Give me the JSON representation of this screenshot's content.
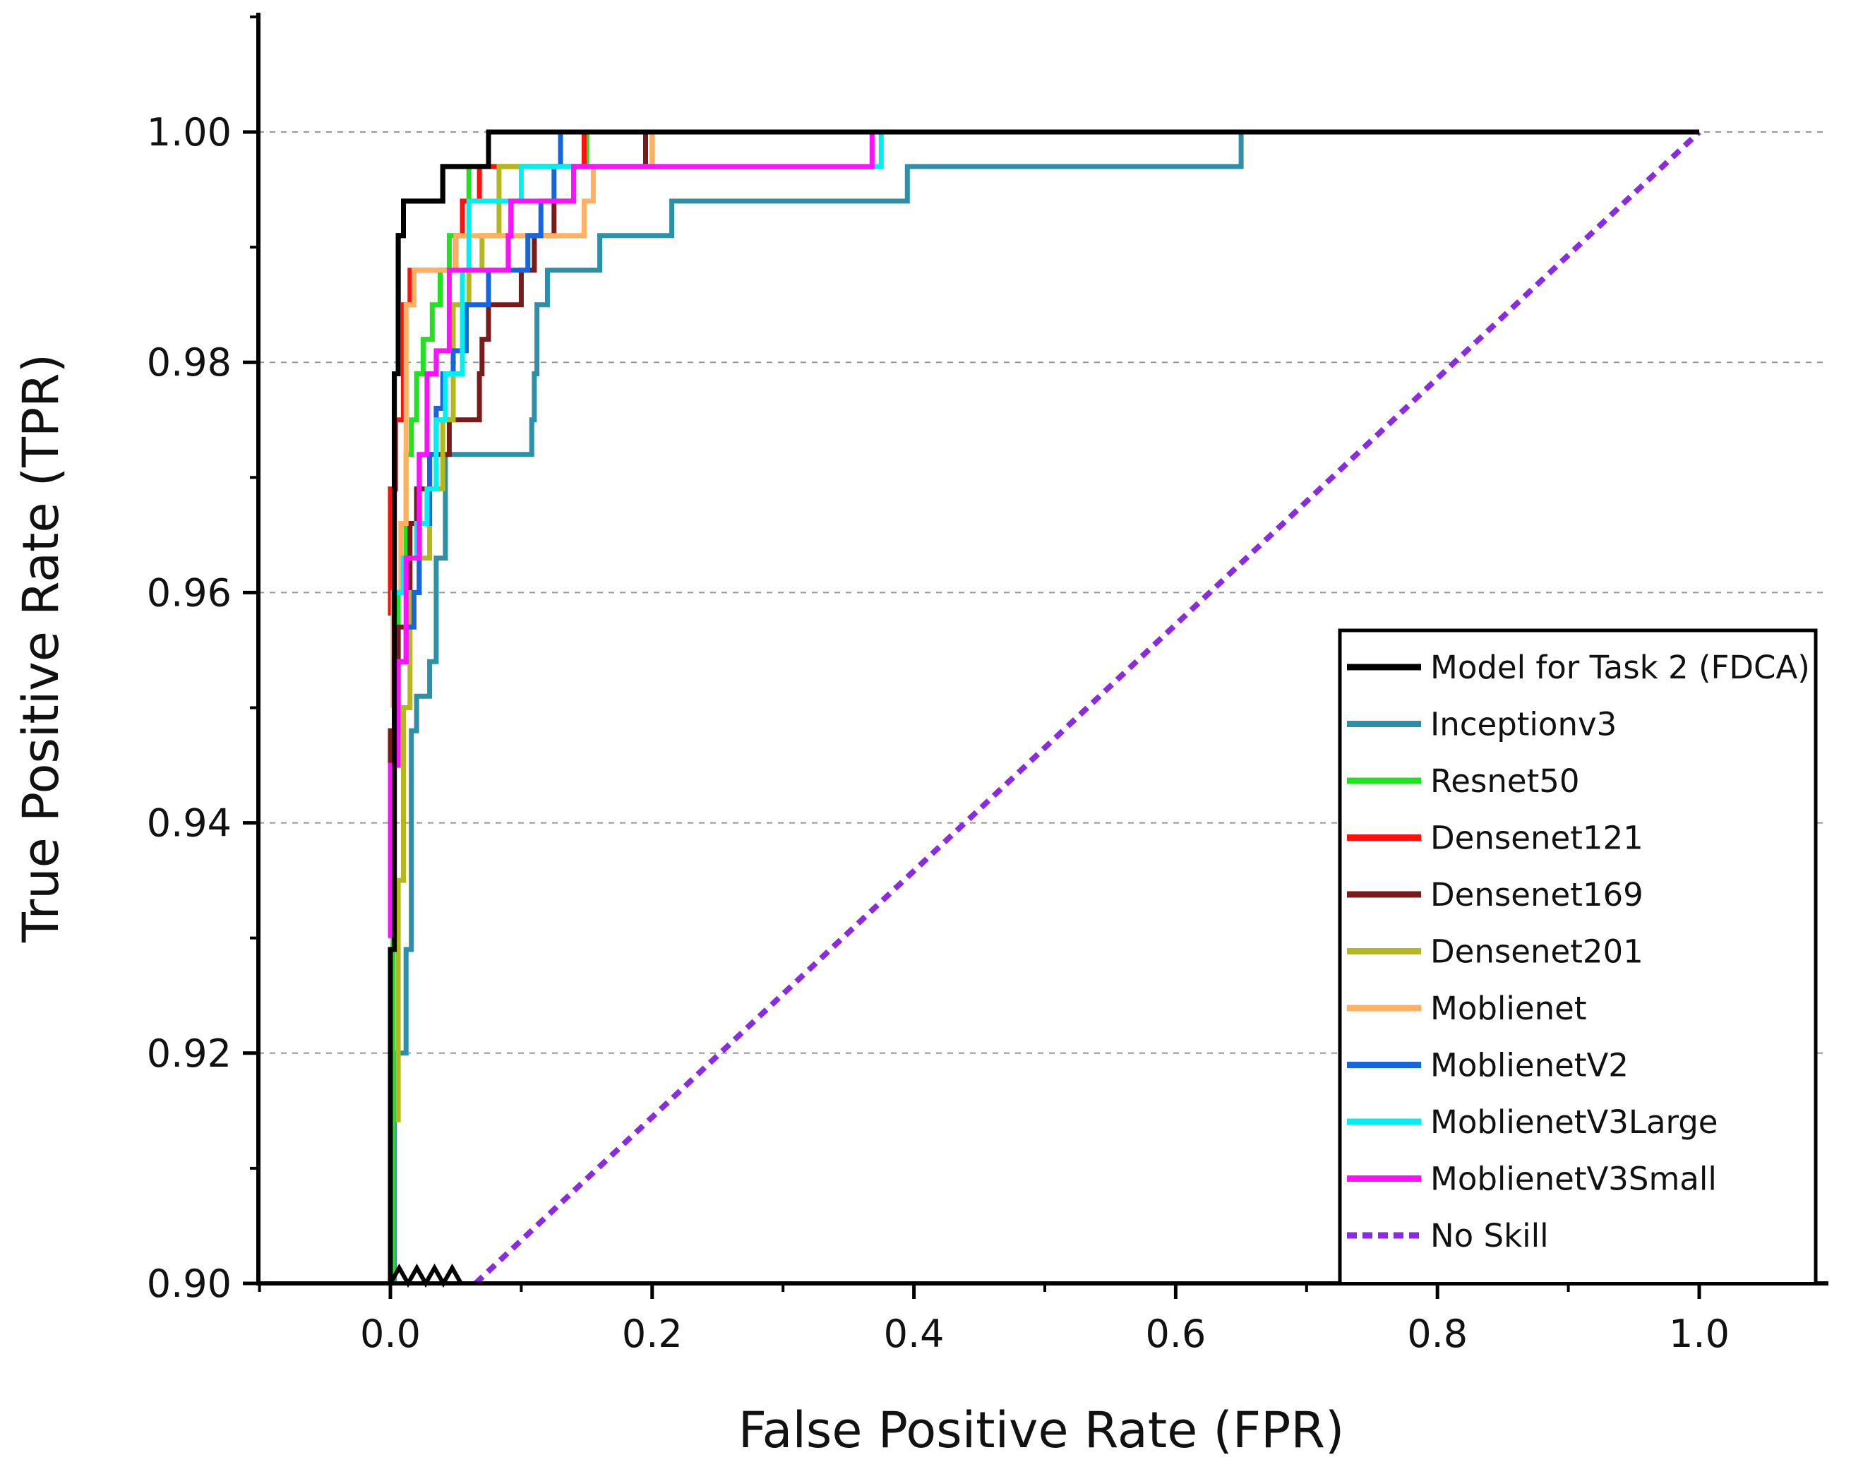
{
  "chart_data": {
    "type": "line",
    "title": "",
    "xlabel": "False Positive Rate (FPR)",
    "ylabel": "True Positive Rate (TPR)",
    "xlim": [
      -0.1,
      1.1
    ],
    "ylim": [
      0.9,
      1.01
    ],
    "x_ticks": [
      0.0,
      0.2,
      0.4,
      0.6,
      0.8,
      1.0
    ],
    "x_tick_labels": [
      "0.0",
      "0.2",
      "0.4",
      "0.6",
      "0.8",
      "1.0"
    ],
    "y_ticks": [
      0.9,
      0.92,
      0.94,
      0.96,
      0.98,
      1.0
    ],
    "y_tick_labels": [
      "0.90",
      "0.92",
      "0.94",
      "0.96",
      "0.98",
      "1.00"
    ],
    "y_axis_break": true,
    "grid": "horizontal dashed at y ticks",
    "legend_position": "lower-right",
    "series": [
      {
        "name": "Model for Task 2 (FDCA)",
        "color": "#000000",
        "dashed": false,
        "points": [
          [
            0,
            0.9
          ],
          [
            0,
            0.929
          ],
          [
            0.003,
            0.929
          ],
          [
            0.003,
            0.979
          ],
          [
            0.006,
            0.979
          ],
          [
            0.006,
            0.991
          ],
          [
            0.01,
            0.991
          ],
          [
            0.01,
            0.994
          ],
          [
            0.04,
            0.994
          ],
          [
            0.04,
            0.997
          ],
          [
            0.075,
            0.997
          ],
          [
            0.075,
            1.0
          ],
          [
            1.0,
            1.0
          ]
        ]
      },
      {
        "name": "Inceptionv3",
        "color": "#2e8fa8",
        "dashed": false,
        "points": [
          [
            0.003,
            0.9
          ],
          [
            0.003,
            0.92
          ],
          [
            0.012,
            0.92
          ],
          [
            0.012,
            0.929
          ],
          [
            0.016,
            0.929
          ],
          [
            0.016,
            0.948
          ],
          [
            0.02,
            0.948
          ],
          [
            0.02,
            0.951
          ],
          [
            0.03,
            0.951
          ],
          [
            0.03,
            0.954
          ],
          [
            0.035,
            0.954
          ],
          [
            0.035,
            0.963
          ],
          [
            0.042,
            0.963
          ],
          [
            0.042,
            0.972
          ],
          [
            0.108,
            0.972
          ],
          [
            0.108,
            0.975
          ],
          [
            0.11,
            0.975
          ],
          [
            0.11,
            0.979
          ],
          [
            0.112,
            0.979
          ],
          [
            0.112,
            0.985
          ],
          [
            0.12,
            0.985
          ],
          [
            0.12,
            0.988
          ],
          [
            0.16,
            0.988
          ],
          [
            0.16,
            0.991
          ],
          [
            0.215,
            0.991
          ],
          [
            0.215,
            0.994
          ],
          [
            0.395,
            0.994
          ],
          [
            0.395,
            0.997
          ],
          [
            0.65,
            0.997
          ],
          [
            0.65,
            1.0
          ],
          [
            1.0,
            1.0
          ]
        ]
      },
      {
        "name": "Resnet50",
        "color": "#22e022",
        "dashed": false,
        "points": [
          [
            0.002,
            0.9
          ],
          [
            0.002,
            0.948
          ],
          [
            0.006,
            0.948
          ],
          [
            0.006,
            0.96
          ],
          [
            0.012,
            0.96
          ],
          [
            0.012,
            0.972
          ],
          [
            0.016,
            0.972
          ],
          [
            0.016,
            0.975
          ],
          [
            0.02,
            0.975
          ],
          [
            0.02,
            0.979
          ],
          [
            0.025,
            0.979
          ],
          [
            0.025,
            0.982
          ],
          [
            0.032,
            0.982
          ],
          [
            0.032,
            0.985
          ],
          [
            0.038,
            0.985
          ],
          [
            0.038,
            0.988
          ],
          [
            0.045,
            0.988
          ],
          [
            0.045,
            0.991
          ],
          [
            0.06,
            0.991
          ],
          [
            0.06,
            0.997
          ],
          [
            0.15,
            0.997
          ],
          [
            0.15,
            1.0
          ],
          [
            1.0,
            1.0
          ]
        ]
      },
      {
        "name": "Densenet121",
        "color": "#ff1010",
        "dashed": false,
        "points": [
          [
            0,
            0.958
          ],
          [
            0,
            0.969
          ],
          [
            0.004,
            0.969
          ],
          [
            0.004,
            0.975
          ],
          [
            0.01,
            0.975
          ],
          [
            0.01,
            0.985
          ],
          [
            0.015,
            0.985
          ],
          [
            0.015,
            0.988
          ],
          [
            0.05,
            0.988
          ],
          [
            0.05,
            0.991
          ],
          [
            0.055,
            0.991
          ],
          [
            0.055,
            0.994
          ],
          [
            0.068,
            0.994
          ],
          [
            0.068,
            0.997
          ],
          [
            0.148,
            0.997
          ],
          [
            0.148,
            1.0
          ]
        ]
      },
      {
        "name": "Densenet169",
        "color": "#7a1a1a",
        "dashed": false,
        "points": [
          [
            0,
            0.945
          ],
          [
            0,
            0.948
          ],
          [
            0.006,
            0.948
          ],
          [
            0.006,
            0.957
          ],
          [
            0.015,
            0.957
          ],
          [
            0.015,
            0.966
          ],
          [
            0.02,
            0.966
          ],
          [
            0.02,
            0.969
          ],
          [
            0.03,
            0.969
          ],
          [
            0.03,
            0.972
          ],
          [
            0.045,
            0.972
          ],
          [
            0.045,
            0.975
          ],
          [
            0.068,
            0.975
          ],
          [
            0.068,
            0.979
          ],
          [
            0.07,
            0.979
          ],
          [
            0.07,
            0.982
          ],
          [
            0.075,
            0.982
          ],
          [
            0.075,
            0.985
          ],
          [
            0.1,
            0.985
          ],
          [
            0.1,
            0.988
          ],
          [
            0.11,
            0.988
          ],
          [
            0.11,
            0.991
          ],
          [
            0.125,
            0.991
          ],
          [
            0.125,
            0.994
          ],
          [
            0.14,
            0.994
          ],
          [
            0.14,
            0.997
          ],
          [
            0.195,
            0.997
          ],
          [
            0.195,
            1.0
          ]
        ]
      },
      {
        "name": "Densenet201",
        "color": "#b5b81a",
        "dashed": false,
        "points": [
          [
            0.006,
            0.914
          ],
          [
            0.006,
            0.935
          ],
          [
            0.01,
            0.935
          ],
          [
            0.01,
            0.95
          ],
          [
            0.015,
            0.95
          ],
          [
            0.015,
            0.96
          ],
          [
            0.022,
            0.96
          ],
          [
            0.022,
            0.963
          ],
          [
            0.03,
            0.963
          ],
          [
            0.03,
            0.969
          ],
          [
            0.04,
            0.969
          ],
          [
            0.04,
            0.975
          ],
          [
            0.048,
            0.975
          ],
          [
            0.048,
            0.985
          ],
          [
            0.06,
            0.985
          ],
          [
            0.06,
            0.988
          ],
          [
            0.07,
            0.988
          ],
          [
            0.07,
            0.991
          ],
          [
            0.083,
            0.991
          ],
          [
            0.083,
            0.997
          ],
          [
            0.2,
            0.997
          ],
          [
            0.2,
            1.0
          ]
        ]
      },
      {
        "name": "Moblienet",
        "color": "#ffb060",
        "dashed": false,
        "points": [
          [
            0.002,
            0.95
          ],
          [
            0.002,
            0.96
          ],
          [
            0.008,
            0.96
          ],
          [
            0.008,
            0.966
          ],
          [
            0.012,
            0.966
          ],
          [
            0.012,
            0.985
          ],
          [
            0.018,
            0.985
          ],
          [
            0.018,
            0.988
          ],
          [
            0.05,
            0.988
          ],
          [
            0.05,
            0.991
          ],
          [
            0.148,
            0.991
          ],
          [
            0.148,
            0.994
          ],
          [
            0.155,
            0.994
          ],
          [
            0.155,
            0.997
          ],
          [
            0.2,
            0.997
          ],
          [
            0.2,
            1.0
          ]
        ]
      },
      {
        "name": "MoblienetV2",
        "color": "#1565e0",
        "dashed": false,
        "points": [
          [
            0.005,
            0.951
          ],
          [
            0.005,
            0.954
          ],
          [
            0.012,
            0.954
          ],
          [
            0.012,
            0.957
          ],
          [
            0.018,
            0.957
          ],
          [
            0.018,
            0.96
          ],
          [
            0.022,
            0.96
          ],
          [
            0.022,
            0.966
          ],
          [
            0.03,
            0.966
          ],
          [
            0.03,
            0.972
          ],
          [
            0.035,
            0.972
          ],
          [
            0.035,
            0.976
          ],
          [
            0.04,
            0.976
          ],
          [
            0.04,
            0.979
          ],
          [
            0.048,
            0.979
          ],
          [
            0.048,
            0.981
          ],
          [
            0.058,
            0.981
          ],
          [
            0.058,
            0.985
          ],
          [
            0.075,
            0.985
          ],
          [
            0.075,
            0.988
          ],
          [
            0.105,
            0.988
          ],
          [
            0.105,
            0.991
          ],
          [
            0.115,
            0.991
          ],
          [
            0.115,
            0.994
          ],
          [
            0.125,
            0.994
          ],
          [
            0.125,
            0.997
          ],
          [
            0.13,
            0.997
          ],
          [
            0.13,
            1.0
          ]
        ]
      },
      {
        "name": "MoblienetV3Large",
        "color": "#00f0f0",
        "dashed": false,
        "points": [
          [
            0.003,
            0.948
          ],
          [
            0.003,
            0.96
          ],
          [
            0.01,
            0.96
          ],
          [
            0.01,
            0.963
          ],
          [
            0.02,
            0.963
          ],
          [
            0.02,
            0.966
          ],
          [
            0.028,
            0.966
          ],
          [
            0.028,
            0.969
          ],
          [
            0.035,
            0.969
          ],
          [
            0.035,
            0.975
          ],
          [
            0.042,
            0.975
          ],
          [
            0.042,
            0.979
          ],
          [
            0.055,
            0.979
          ],
          [
            0.055,
            0.988
          ],
          [
            0.06,
            0.988
          ],
          [
            0.06,
            0.994
          ],
          [
            0.1,
            0.994
          ],
          [
            0.1,
            0.997
          ],
          [
            0.375,
            0.997
          ],
          [
            0.375,
            1.0
          ]
        ]
      },
      {
        "name": "MoblienetV3Small",
        "color": "#ff10ff",
        "dashed": false,
        "points": [
          [
            0,
            0.93
          ],
          [
            0,
            0.945
          ],
          [
            0.006,
            0.945
          ],
          [
            0.006,
            0.954
          ],
          [
            0.012,
            0.954
          ],
          [
            0.012,
            0.963
          ],
          [
            0.022,
            0.963
          ],
          [
            0.022,
            0.972
          ],
          [
            0.028,
            0.972
          ],
          [
            0.028,
            0.979
          ],
          [
            0.035,
            0.979
          ],
          [
            0.035,
            0.981
          ],
          [
            0.045,
            0.981
          ],
          [
            0.045,
            0.988
          ],
          [
            0.09,
            0.988
          ],
          [
            0.09,
            0.991
          ],
          [
            0.092,
            0.991
          ],
          [
            0.092,
            0.994
          ],
          [
            0.14,
            0.994
          ],
          [
            0.14,
            0.997
          ],
          [
            0.368,
            0.997
          ],
          [
            0.368,
            1.0
          ]
        ]
      },
      {
        "name": "No Skill",
        "color": "#8a2be2",
        "dashed": true,
        "points": [
          [
            0.065,
            0.9
          ],
          [
            1.0,
            1.0
          ]
        ]
      }
    ]
  }
}
